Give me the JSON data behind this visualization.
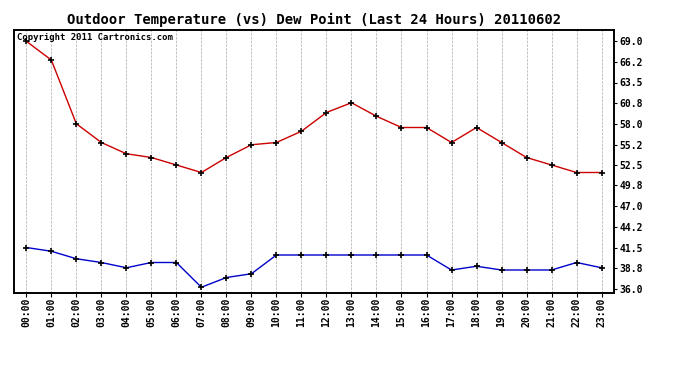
{
  "title": "Outdoor Temperature (vs) Dew Point (Last 24 Hours) 20110602",
  "copyright_text": "Copyright 2011 Cartronics.com",
  "x_labels": [
    "00:00",
    "01:00",
    "02:00",
    "03:00",
    "04:00",
    "05:00",
    "06:00",
    "07:00",
    "08:00",
    "09:00",
    "10:00",
    "11:00",
    "12:00",
    "13:00",
    "14:00",
    "15:00",
    "16:00",
    "17:00",
    "18:00",
    "19:00",
    "20:00",
    "21:00",
    "22:00",
    "23:00"
  ],
  "temp_data": [
    69.0,
    66.5,
    58.0,
    55.5,
    54.0,
    53.5,
    52.5,
    51.5,
    53.5,
    55.2,
    55.5,
    57.0,
    59.5,
    60.8,
    59.0,
    57.5,
    57.5,
    55.5,
    57.5,
    55.5,
    53.5,
    52.5,
    51.5,
    51.5
  ],
  "dew_data": [
    41.5,
    41.0,
    40.0,
    39.5,
    38.8,
    39.5,
    39.5,
    36.2,
    37.5,
    38.0,
    40.5,
    40.5,
    40.5,
    40.5,
    40.5,
    40.5,
    40.5,
    38.5,
    39.0,
    38.5,
    38.5,
    38.5,
    39.5,
    38.8
  ],
  "temp_color": "#cc0000",
  "dew_color": "#0000cc",
  "bg_color": "#ffffff",
  "plot_bg_color": "#ffffff",
  "grid_color": "#aaaaaa",
  "y_ticks": [
    36.0,
    38.8,
    41.5,
    44.2,
    47.0,
    49.8,
    52.5,
    55.2,
    58.0,
    60.8,
    63.5,
    66.2,
    69.0
  ],
  "ylim": [
    35.5,
    70.5
  ],
  "title_fontsize": 10,
  "tick_fontsize": 7,
  "copyright_fontsize": 6.5
}
